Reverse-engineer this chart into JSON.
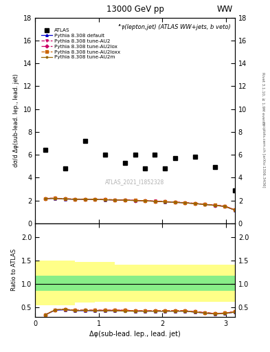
{
  "title_center": "13000 GeV pp",
  "title_right": "WW",
  "subtitle": "Δφ(lepton,jet) (ATLAS WW+jets, b veto)",
  "xlabel": "Δφ(sub-lead. lep., lead. jet)",
  "ylabel_main": "dσ/d Δφ(sub-lead. lep., lead. jet)",
  "ylabel_ratio": "Ratio to ATLAS",
  "watermark": "ATLAS_2021_I1852328",
  "right_label1": "Rivet 3.1.10, ≥ 1.9M events",
  "right_label2": "mcplots.cern.ch [arXiv:1306.3436]",
  "atlas_x": [
    0.157,
    0.471,
    0.785,
    1.099,
    1.413,
    1.571,
    1.727,
    1.884,
    2.042,
    2.199,
    2.513,
    2.827,
    3.14
  ],
  "atlas_y": [
    6.4,
    4.8,
    7.2,
    6.0,
    5.3,
    6.0,
    4.8,
    6.0,
    4.8,
    5.7,
    5.8,
    4.9,
    2.9
  ],
  "mc_x": [
    0.157,
    0.314,
    0.471,
    0.628,
    0.785,
    0.942,
    1.099,
    1.257,
    1.414,
    1.571,
    1.728,
    1.885,
    2.042,
    2.199,
    2.356,
    2.513,
    2.67,
    2.827,
    2.984,
    3.141
  ],
  "default_y": [
    2.15,
    2.18,
    2.12,
    2.1,
    2.1,
    2.09,
    2.06,
    2.04,
    2.02,
    2.0,
    1.97,
    1.93,
    1.88,
    1.84,
    1.79,
    1.73,
    1.65,
    1.57,
    1.48,
    1.15
  ],
  "au2_y": [
    2.18,
    2.2,
    2.15,
    2.12,
    2.12,
    2.11,
    2.08,
    2.06,
    2.04,
    2.01,
    1.98,
    1.95,
    1.9,
    1.86,
    1.81,
    1.75,
    1.67,
    1.6,
    1.51,
    1.18
  ],
  "au2lox_y": [
    2.17,
    2.19,
    2.14,
    2.11,
    2.11,
    2.1,
    2.07,
    2.05,
    2.03,
    2.0,
    1.97,
    1.94,
    1.89,
    1.85,
    1.8,
    1.74,
    1.66,
    1.58,
    1.49,
    1.17
  ],
  "au2loxx_y": [
    2.18,
    2.2,
    2.15,
    2.12,
    2.12,
    2.11,
    2.08,
    2.06,
    2.03,
    2.01,
    1.98,
    1.94,
    1.89,
    1.86,
    1.8,
    1.74,
    1.67,
    1.59,
    1.5,
    1.17
  ],
  "au2m_y": [
    2.16,
    2.18,
    2.13,
    2.1,
    2.1,
    2.09,
    2.06,
    2.04,
    2.02,
    1.99,
    1.96,
    1.92,
    1.88,
    1.83,
    1.78,
    1.72,
    1.64,
    1.56,
    1.47,
    1.16
  ],
  "ylim_main": [
    0,
    18
  ],
  "ylim_ratio": [
    0.3,
    2.3
  ],
  "xlim": [
    0.0,
    3.14159
  ],
  "band_x": [
    0.0,
    0.314,
    0.628,
    0.942,
    1.257,
    1.571,
    1.728,
    1.885,
    2.042,
    2.199,
    2.513,
    2.827,
    3.14159
  ],
  "green_lo": [
    0.85,
    0.85,
    0.85,
    0.85,
    0.85,
    0.85,
    0.85,
    0.85,
    0.85,
    0.85,
    0.85,
    0.85,
    0.85
  ],
  "green_hi": [
    1.18,
    1.18,
    1.18,
    1.18,
    1.18,
    1.18,
    1.18,
    1.18,
    1.18,
    1.18,
    1.18,
    1.18,
    1.18
  ],
  "yellow_lo": [
    0.55,
    0.55,
    0.6,
    0.62,
    0.62,
    0.62,
    0.62,
    0.62,
    0.62,
    0.62,
    0.62,
    0.62,
    0.4
  ],
  "yellow_hi": [
    1.5,
    1.5,
    1.48,
    1.48,
    1.42,
    1.42,
    1.42,
    1.42,
    1.42,
    1.42,
    1.42,
    1.42,
    1.8
  ],
  "ratio_x": [
    0.157,
    0.314,
    0.471,
    0.628,
    0.785,
    0.942,
    1.099,
    1.257,
    1.414,
    1.571,
    1.728,
    1.885,
    2.042,
    2.199,
    2.356,
    2.513,
    2.67,
    2.827,
    2.984,
    3.141
  ],
  "ratio_default": [
    0.34,
    0.44,
    0.45,
    0.43,
    0.43,
    0.43,
    0.43,
    0.43,
    0.43,
    0.42,
    0.42,
    0.42,
    0.42,
    0.42,
    0.42,
    0.4,
    0.38,
    0.36,
    0.37,
    0.4
  ],
  "ratio_au2": [
    0.34,
    0.45,
    0.46,
    0.44,
    0.44,
    0.44,
    0.44,
    0.44,
    0.44,
    0.43,
    0.43,
    0.43,
    0.43,
    0.43,
    0.43,
    0.41,
    0.39,
    0.37,
    0.38,
    0.41
  ],
  "ratio_au2lox": [
    0.34,
    0.45,
    0.46,
    0.44,
    0.44,
    0.44,
    0.44,
    0.44,
    0.44,
    0.43,
    0.43,
    0.43,
    0.43,
    0.43,
    0.43,
    0.41,
    0.39,
    0.37,
    0.38,
    0.41
  ],
  "ratio_au2loxx": [
    0.34,
    0.45,
    0.46,
    0.44,
    0.44,
    0.44,
    0.44,
    0.44,
    0.44,
    0.43,
    0.43,
    0.43,
    0.43,
    0.43,
    0.43,
    0.41,
    0.39,
    0.37,
    0.38,
    0.41
  ],
  "ratio_au2m": [
    0.34,
    0.45,
    0.46,
    0.43,
    0.44,
    0.43,
    0.43,
    0.43,
    0.42,
    0.42,
    0.42,
    0.42,
    0.42,
    0.42,
    0.42,
    0.4,
    0.38,
    0.36,
    0.37,
    0.4
  ],
  "color_default": "#0000cc",
  "color_au2": "#cc0066",
  "color_au2lox": "#cc0066",
  "color_au2loxx": "#cc6600",
  "color_au2m": "#996600",
  "marker_default": "^",
  "marker_au2": "v",
  "marker_au2lox": "D",
  "marker_au2loxx": "s",
  "marker_au2m": "*",
  "ls_default": "-",
  "ls_au2": "--",
  "ls_au2lox": "-.",
  "ls_au2loxx": "--",
  "ls_au2m": "-",
  "main_yticks": [
    0,
    2,
    4,
    6,
    8,
    10,
    12,
    14,
    16,
    18
  ],
  "ratio_yticks": [
    0.5,
    1.0,
    1.5,
    2.0
  ],
  "xticks": [
    0,
    1,
    2,
    3
  ]
}
